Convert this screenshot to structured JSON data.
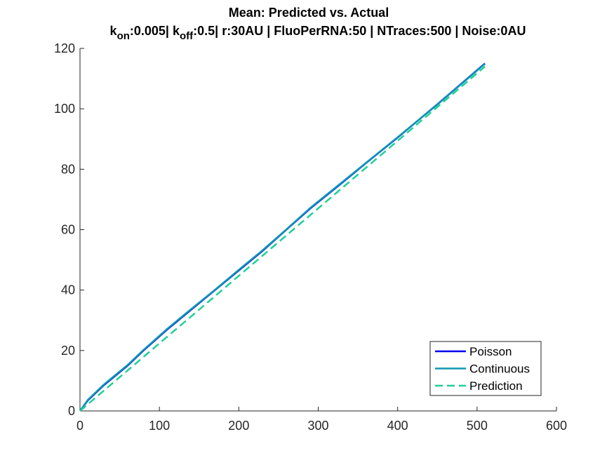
{
  "chart_data": {
    "type": "line",
    "title": "Mean: Predicted vs. Actual",
    "subtitle_parts": [
      {
        "text": "k",
        "sub": false
      },
      {
        "text": "on",
        "sub": true
      },
      {
        "text": ":0.005| k",
        "sub": false
      },
      {
        "text": "off",
        "sub": true
      },
      {
        "text": ":0.5| r:30AU | FluoPerRNA:50 | NTraces:500 | Noise:0AU",
        "sub": false
      }
    ],
    "xlabel": "",
    "ylabel": "",
    "xlim": [
      0,
      600
    ],
    "ylim": [
      0,
      120
    ],
    "xticks": [
      0,
      100,
      200,
      300,
      400,
      500,
      600
    ],
    "yticks": [
      0,
      20,
      40,
      60,
      80,
      100,
      120
    ],
    "grid": false,
    "legend_position": "bottom-right",
    "series": [
      {
        "name": "Poisson",
        "color": "#0000ee",
        "dash": "solid",
        "x": [
          0,
          10,
          30,
          60,
          80,
          110,
          140,
          170,
          200,
          230,
          260,
          290,
          330,
          360,
          400,
          450,
          510
        ],
        "y": [
          0,
          3.5,
          8.5,
          15,
          20,
          27,
          33.5,
          40,
          46.5,
          53,
          60,
          67,
          75.5,
          82,
          90.5,
          101.5,
          115
        ]
      },
      {
        "name": "Continuous",
        "color": "#0e96b4",
        "dash": "solid",
        "x": [
          0,
          10,
          30,
          60,
          80,
          110,
          140,
          170,
          200,
          230,
          260,
          290,
          330,
          360,
          400,
          450,
          510
        ],
        "y": [
          0,
          3.7,
          8.7,
          15.2,
          20.2,
          27.2,
          33.7,
          40.1,
          46.7,
          53.2,
          60.1,
          67.2,
          75.7,
          82.1,
          90.6,
          101.4,
          114.9
        ]
      },
      {
        "name": "Prediction",
        "color": "#1ed098",
        "dash": "dashed",
        "x": [
          0,
          510
        ],
        "y": [
          0,
          114
        ]
      }
    ]
  }
}
